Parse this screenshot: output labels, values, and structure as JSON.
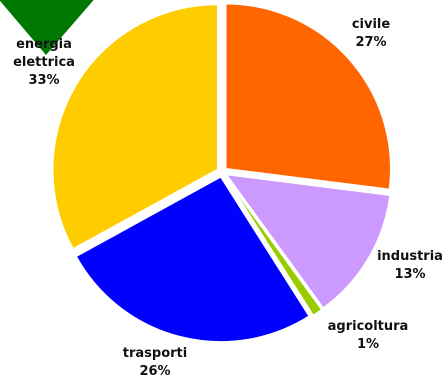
{
  "chart_data": {
    "type": "pie",
    "title": "",
    "slices": [
      {
        "label": "civile",
        "value": 27,
        "value_label": "27%",
        "color": "#ff6600"
      },
      {
        "label": "industria",
        "value": 13,
        "value_label": "13%",
        "color": "#cc99ff"
      },
      {
        "label": "agricoltura",
        "value": 1,
        "value_label": "1%",
        "color": "#99cc00"
      },
      {
        "label": "trasporti",
        "value": 26,
        "value_label": "26%",
        "color": "#0000ff"
      },
      {
        "label": "energia\nelettrica",
        "value": 33,
        "value_label": "33%",
        "color": "#ffcc00"
      }
    ],
    "legend": "none"
  },
  "decoration": {
    "corner_marker_color": "#007700"
  }
}
